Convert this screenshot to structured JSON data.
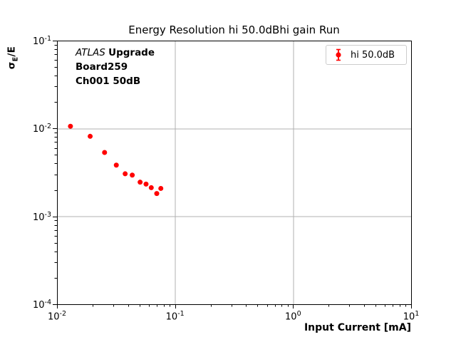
{
  "title": "Energy Resolution hi 50.0dBhi gain Run",
  "annotation": {
    "atlas": "ATLAS",
    "upgrade": "Upgrade",
    "line2": "Board259",
    "line3": "Ch001 50dB"
  },
  "legend": {
    "label": "hi 50.0dB"
  },
  "axes": {
    "xlabel": "Input Current [mA]",
    "ylabel_sigma": "σ",
    "ylabel_sub": "E",
    "ylabel_rest": "/E"
  },
  "colors": {
    "marker": "#ff0000",
    "grid": "#b0b0b0",
    "spine": "#000000",
    "legend_border": "#cccccc",
    "text": "#000000"
  },
  "chart_data": {
    "type": "scatter",
    "title": "Energy Resolution hi 50.0dBhi gain Run",
    "xlabel": "Input Current [mA]",
    "ylabel": "sigma_E/E",
    "xscale": "log",
    "yscale": "log",
    "xlim": [
      0.01,
      10
    ],
    "ylim": [
      0.0001,
      0.1
    ],
    "x_tick_exponents": [
      -2,
      -1,
      0,
      1
    ],
    "y_tick_exponents": [
      -1,
      -2,
      -3,
      -4
    ],
    "grid": "major gridlines both axes, light gray",
    "legend_position": "upper-right",
    "series": [
      {
        "name": "hi 50.0dB",
        "color": "#ff0000",
        "marker": "errorbar-dot",
        "x": [
          0.013,
          0.0191,
          0.0253,
          0.0318,
          0.0378,
          0.0434,
          0.0506,
          0.0568,
          0.0629,
          0.07,
          0.0758
        ],
        "y": [
          0.0106,
          0.00815,
          0.00533,
          0.00383,
          0.00305,
          0.00295,
          0.00245,
          0.00233,
          0.00212,
          0.00182,
          0.00208
        ]
      }
    ]
  }
}
